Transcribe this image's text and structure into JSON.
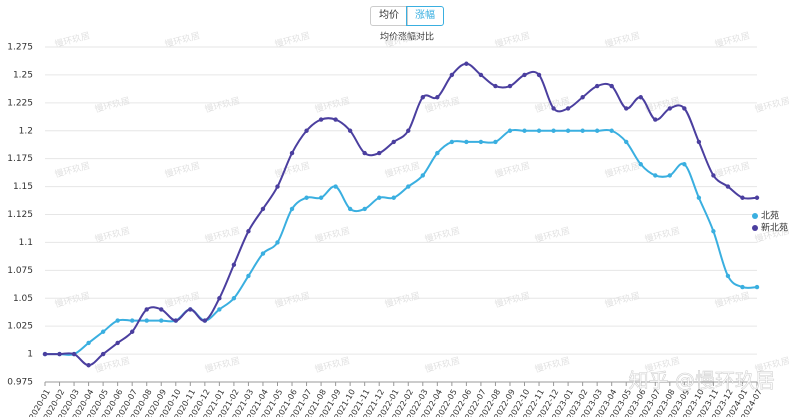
{
  "tabs": [
    "均价",
    "涨幅"
  ],
  "active_tab": 1,
  "watermark": "知乎 @慢环玖居",
  "tile_watermark": "慢环玖居",
  "chart_data": {
    "type": "line",
    "title": "均价涨幅对比",
    "categories": [
      "2020-01",
      "2020-02",
      "2020-03",
      "2020-04",
      "2020-05",
      "2020-06",
      "2020-07",
      "2020-08",
      "2020-09",
      "2020-10",
      "2020-11",
      "2020-12",
      "2021-01",
      "2021-02",
      "2021-03",
      "2021-04",
      "2021-05",
      "2021-06",
      "2021-07",
      "2021-08",
      "2021-09",
      "2021-10",
      "2021-11",
      "2021-12",
      "2022-01",
      "2022-02",
      "2022-03",
      "2022-04",
      "2022-05",
      "2022-06",
      "2022-07",
      "2022-08",
      "2022-09",
      "2022-10",
      "2022-11",
      "2022-12",
      "2023-01",
      "2023-02",
      "2023-03",
      "2023-04",
      "2023-05",
      "2023-06",
      "2023-07",
      "2023-08",
      "2023-09",
      "2023-10",
      "2023-11",
      "2023-12",
      "2024-01",
      "2024-07"
    ],
    "series": [
      {
        "name": "北苑",
        "color": "#3aafe0",
        "values": [
          1,
          1,
          1,
          1.01,
          1.02,
          1.03,
          1.03,
          1.03,
          1.03,
          1.03,
          1.04,
          1.03,
          1.04,
          1.05,
          1.07,
          1.09,
          1.1,
          1.13,
          1.14,
          1.14,
          1.15,
          1.13,
          1.13,
          1.14,
          1.14,
          1.15,
          1.16,
          1.18,
          1.19,
          1.19,
          1.19,
          1.19,
          1.2,
          1.2,
          1.2,
          1.2,
          1.2,
          1.2,
          1.2,
          1.2,
          1.19,
          1.17,
          1.16,
          1.16,
          1.17,
          1.14,
          1.11,
          1.07,
          1.06,
          1.06
        ]
      },
      {
        "name": "新北苑",
        "color": "#4b3f9f",
        "values": [
          1,
          1,
          1,
          0.99,
          1,
          1.01,
          1.02,
          1.04,
          1.04,
          1.03,
          1.04,
          1.03,
          1.05,
          1.08,
          1.11,
          1.13,
          1.15,
          1.18,
          1.2,
          1.21,
          1.21,
          1.2,
          1.18,
          1.18,
          1.19,
          1.2,
          1.23,
          1.23,
          1.25,
          1.26,
          1.25,
          1.24,
          1.24,
          1.25,
          1.25,
          1.22,
          1.22,
          1.23,
          1.24,
          1.24,
          1.22,
          1.23,
          1.21,
          1.22,
          1.22,
          1.19,
          1.16,
          1.15,
          1.14,
          1.14
        ]
      }
    ],
    "ylim": [
      0.975,
      1.275
    ],
    "yticks": [
      0.975,
      1,
      1.025,
      1.05,
      1.075,
      1.1,
      1.125,
      1.15,
      1.175,
      1.2,
      1.225,
      1.25,
      1.275
    ],
    "grid": true,
    "legend": "right"
  }
}
